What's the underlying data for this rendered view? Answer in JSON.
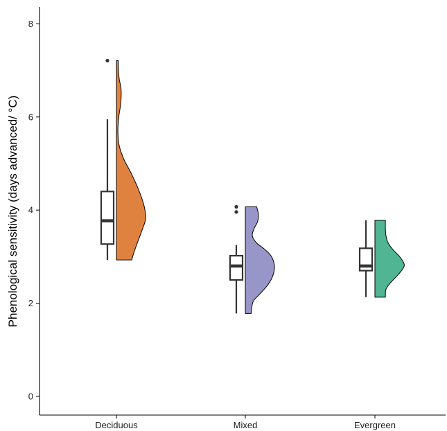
{
  "chart_data": {
    "type": "violin-box",
    "title": "",
    "xlabel": "",
    "ylabel": "Phenological sensitivity (days advanced/ °C)",
    "ylim": [
      0,
      8.4
    ],
    "yticks": [
      0,
      2,
      4,
      6,
      8
    ],
    "categories": [
      "Deciduous",
      "Mixed",
      "Evergreen"
    ],
    "grid": false,
    "legend": "none",
    "groups": [
      {
        "name": "Deciduous",
        "color": "#E0823F",
        "box": {
          "min": 2.93,
          "q1": 3.27,
          "median": 3.77,
          "q3": 4.4,
          "max": 5.95
        },
        "outliers": [
          7.21
        ],
        "density": [
          [
            2.93,
            0.53
          ],
          [
            3.05,
            0.58
          ],
          [
            3.3,
            0.72
          ],
          [
            3.6,
            0.9
          ],
          [
            3.8,
            1.0
          ],
          [
            4.0,
            0.98
          ],
          [
            4.2,
            0.9
          ],
          [
            4.5,
            0.72
          ],
          [
            4.8,
            0.5
          ],
          [
            5.1,
            0.25
          ],
          [
            5.4,
            0.09
          ],
          [
            5.7,
            0.05
          ],
          [
            6.0,
            0.08
          ],
          [
            6.3,
            0.15
          ],
          [
            6.6,
            0.16
          ],
          [
            6.8,
            0.1
          ],
          [
            7.0,
            0.07
          ],
          [
            7.21,
            0.06
          ]
        ]
      },
      {
        "name": "Mixed",
        "color": "#9895C9",
        "box": {
          "min": 1.78,
          "q1": 2.5,
          "median": 2.8,
          "q3": 3.02,
          "max": 3.25
        },
        "outliers": [
          4.07,
          3.96
        ],
        "density": [
          [
            1.78,
            0.2
          ],
          [
            1.9,
            0.22
          ],
          [
            2.05,
            0.28
          ],
          [
            2.2,
            0.5
          ],
          [
            2.4,
            0.78
          ],
          [
            2.6,
            0.95
          ],
          [
            2.8,
            1.0
          ],
          [
            3.0,
            0.9
          ],
          [
            3.15,
            0.68
          ],
          [
            3.3,
            0.38
          ],
          [
            3.45,
            0.24
          ],
          [
            3.6,
            0.3
          ],
          [
            3.75,
            0.42
          ],
          [
            3.9,
            0.45
          ],
          [
            4.0,
            0.42
          ],
          [
            4.07,
            0.39
          ]
        ]
      },
      {
        "name": "Evergreen",
        "color": "#4FB592",
        "box": {
          "min": 2.13,
          "q1": 2.7,
          "median": 2.8,
          "q3": 3.18,
          "max": 3.78
        },
        "outliers": [],
        "density": [
          [
            2.13,
            0.36
          ],
          [
            2.3,
            0.38
          ],
          [
            2.45,
            0.55
          ],
          [
            2.6,
            0.78
          ],
          [
            2.75,
            0.97
          ],
          [
            2.85,
            1.0
          ],
          [
            3.0,
            0.85
          ],
          [
            3.15,
            0.62
          ],
          [
            3.3,
            0.45
          ],
          [
            3.45,
            0.38
          ],
          [
            3.6,
            0.36
          ],
          [
            3.78,
            0.36
          ]
        ]
      }
    ]
  }
}
